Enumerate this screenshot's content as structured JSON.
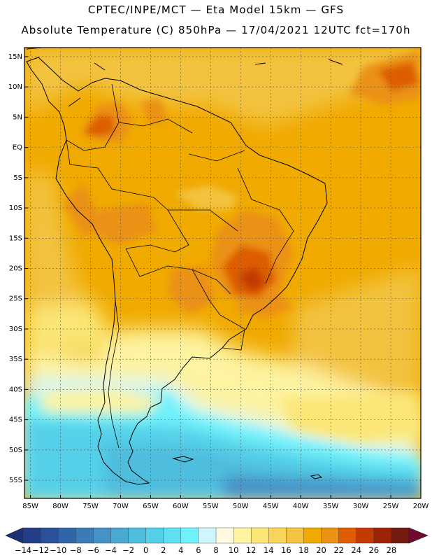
{
  "header": {
    "line1": "CPTEC/INPE/MCT —  Eta Model 15km — GFS",
    "line2": "Absolute Temperature (C) 850hPa — 17/04/2021 12UTC fct=170h"
  },
  "map": {
    "lat_labels": [
      "15N",
      "10N",
      "5N",
      "EQ",
      "5S",
      "10S",
      "15S",
      "20S",
      "25S",
      "30S",
      "35S",
      "40S",
      "45S",
      "50S",
      "55S"
    ],
    "lat_values": [
      15,
      10,
      5,
      0,
      -5,
      -10,
      -15,
      -20,
      -25,
      -30,
      -35,
      -40,
      -45,
      -50,
      -55
    ],
    "lon_labels": [
      "85W",
      "80W",
      "75W",
      "70W",
      "65W",
      "60W",
      "55W",
      "50W",
      "45W",
      "40W",
      "35W",
      "30W",
      "25W",
      "20W"
    ],
    "lon_values": [
      -85,
      -80,
      -75,
      -70,
      -65,
      -60,
      -55,
      -50,
      -45,
      -40,
      -35,
      -30,
      -25,
      -20
    ],
    "lat_range": [
      -58,
      16.5
    ],
    "lon_range": [
      -86,
      -20
    ]
  },
  "colorbar": {
    "labels": [
      "-14",
      "-12",
      "-10",
      "-8",
      "-6",
      "-4",
      "-2",
      "0",
      "2",
      "4",
      "6",
      "8",
      "10",
      "12",
      "14",
      "16",
      "18",
      "20",
      "22",
      "24",
      "26",
      "28"
    ],
    "colors": [
      "#243f8a",
      "#2b519a",
      "#3065a8",
      "#3a7bb8",
      "#4592c6",
      "#4aa8d2",
      "#4fbdde",
      "#55d0e8",
      "#5fe0f0",
      "#6ff0fa",
      "#cff7fb",
      "#fff9e0",
      "#fdf3a0",
      "#fbe676",
      "#f8d45a",
      "#f3c341",
      "#f0aa00",
      "#eb9216",
      "#dd5d00",
      "#c23a04",
      "#9a2308",
      "#741a10"
    ],
    "under_color": "#1e2f72",
    "over_color": "#700a30"
  }
}
